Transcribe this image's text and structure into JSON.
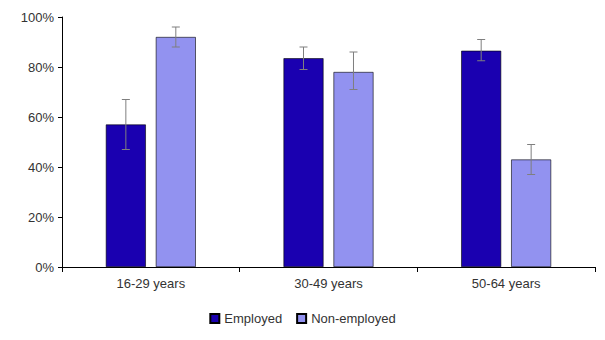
{
  "chart_data": {
    "type": "bar",
    "categories": [
      "16-29 years",
      "30-49 years",
      "50-64 years"
    ],
    "series": [
      {
        "name": "Employed",
        "color": "#1a00b0",
        "values": [
          57,
          83.5,
          86.5
        ],
        "errors": [
          [
            47,
            67
          ],
          [
            79,
            88
          ],
          [
            82.5,
            91
          ]
        ]
      },
      {
        "name": "Non-employed",
        "color": "#9292f0",
        "values": [
          92,
          78,
          43
        ],
        "errors": [
          [
            88,
            96
          ],
          [
            71,
            86
          ],
          [
            37,
            49
          ]
        ]
      }
    ],
    "ylim": [
      0,
      100
    ],
    "yticks": [
      {
        "value": 0,
        "label": "0%"
      },
      {
        "value": 20,
        "label": "20%"
      },
      {
        "value": 40,
        "label": "40%"
      },
      {
        "value": 60,
        "label": "60%"
      },
      {
        "value": 80,
        "label": "80%"
      },
      {
        "value": 100,
        "label": "100%"
      }
    ],
    "grid": false,
    "legend": "bottom"
  }
}
